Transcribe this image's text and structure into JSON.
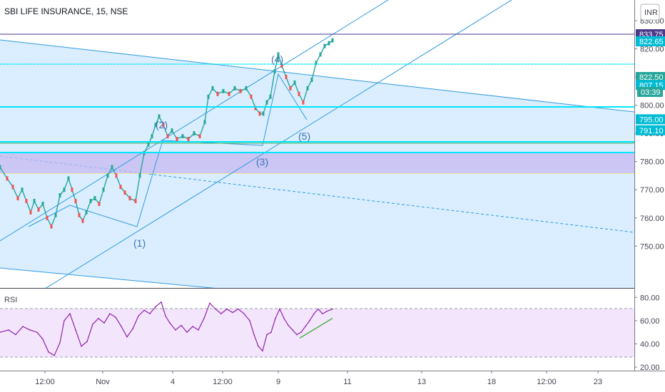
{
  "title": "SBI LIFE INSURANCE, 15, NSE",
  "currency": "INR",
  "rsi_label": "RSI",
  "countdown": "03:39",
  "colors": {
    "up": "#26a69a",
    "down": "#ef5350",
    "channel_fill": "#dbeeff",
    "channel_line": "#2f9ae0",
    "zone": "#c6b8f0",
    "cyan": "#00e5ff",
    "green_line": "#4caf50",
    "resist": "#4b3a8c",
    "rsi_line": "#8e24aa",
    "rsi_band": "#f3e5fc"
  },
  "chart_data": [
    {
      "type": "candlestick",
      "title": "SBI LIFE INSURANCE, 15, NSE",
      "xlabel": "",
      "ylabel": "",
      "x_ticks": [
        "12:00",
        "Nov",
        "4",
        "12:00",
        "9",
        "11",
        "13",
        "18",
        "12:00",
        "23"
      ],
      "y_ticks": [
        750,
        760,
        770,
        780,
        790,
        800,
        810,
        820,
        830
      ],
      "ylim": [
        744,
        841
      ],
      "price_labels": [
        {
          "value": 833.75,
          "text": "833.75",
          "color": "#4b3a8c"
        },
        {
          "value": 822.65,
          "text": "822.65",
          "color": "#00bcd4"
        },
        {
          "value": 822.5,
          "text": "822.50",
          "color": "#26a69a"
        },
        {
          "value": 807.15,
          "text": "807.15",
          "color": "#00bcd4"
        },
        {
          "value": 795.0,
          "text": "795.00",
          "color": "#00bcd4"
        },
        {
          "value": 791.1,
          "text": "791.10",
          "color": "#00bcd4"
        }
      ],
      "horizontal_levels": [
        833.75,
        822.65,
        807.15,
        795.0,
        791.1
      ],
      "zone": [
        784,
        791.1
      ],
      "wave_labels": [
        "(1)",
        "(2)",
        "(3)",
        "(4)",
        "(5)"
      ],
      "series_path": [
        {
          "x": 0,
          "y": 778
        },
        {
          "x": 10,
          "y": 774
        },
        {
          "x": 18,
          "y": 771
        },
        {
          "x": 25,
          "y": 767
        },
        {
          "x": 31,
          "y": 770
        },
        {
          "x": 37,
          "y": 766
        },
        {
          "x": 43,
          "y": 762
        },
        {
          "x": 48,
          "y": 766
        },
        {
          "x": 54,
          "y": 763
        },
        {
          "x": 60,
          "y": 765
        },
        {
          "x": 66,
          "y": 760
        },
        {
          "x": 72,
          "y": 757
        },
        {
          "x": 78,
          "y": 761
        },
        {
          "x": 84,
          "y": 768
        },
        {
          "x": 90,
          "y": 770
        },
        {
          "x": 96,
          "y": 774
        },
        {
          "x": 101,
          "y": 770
        },
        {
          "x": 106,
          "y": 766
        },
        {
          "x": 111,
          "y": 761
        },
        {
          "x": 116,
          "y": 759
        },
        {
          "x": 121,
          "y": 762
        },
        {
          "x": 127,
          "y": 766
        },
        {
          "x": 133,
          "y": 767
        },
        {
          "x": 139,
          "y": 765
        },
        {
          "x": 145,
          "y": 770
        },
        {
          "x": 151,
          "y": 775
        },
        {
          "x": 157,
          "y": 778
        },
        {
          "x": 163,
          "y": 775
        },
        {
          "x": 169,
          "y": 771
        },
        {
          "x": 175,
          "y": 769
        },
        {
          "x": 182,
          "y": 767
        },
        {
          "x": 190,
          "y": 766
        },
        {
          "x": 196,
          "y": 775
        },
        {
          "x": 202,
          "y": 783
        },
        {
          "x": 208,
          "y": 786
        },
        {
          "x": 213,
          "y": 789
        },
        {
          "x": 218,
          "y": 793
        },
        {
          "x": 223,
          "y": 796
        },
        {
          "x": 229,
          "y": 793
        },
        {
          "x": 235,
          "y": 789
        },
        {
          "x": 241,
          "y": 791
        },
        {
          "x": 248,
          "y": 788
        },
        {
          "x": 256,
          "y": 789
        },
        {
          "x": 264,
          "y": 788
        },
        {
          "x": 272,
          "y": 790
        },
        {
          "x": 280,
          "y": 789
        },
        {
          "x": 287,
          "y": 794
        },
        {
          "x": 292,
          "y": 803
        },
        {
          "x": 298,
          "y": 806
        },
        {
          "x": 305,
          "y": 804
        },
        {
          "x": 313,
          "y": 805
        },
        {
          "x": 321,
          "y": 804
        },
        {
          "x": 329,
          "y": 806
        },
        {
          "x": 337,
          "y": 805
        },
        {
          "x": 345,
          "y": 806
        },
        {
          "x": 352,
          "y": 803
        },
        {
          "x": 358,
          "y": 799
        },
        {
          "x": 364,
          "y": 797
        },
        {
          "x": 369,
          "y": 797
        },
        {
          "x": 374,
          "y": 801
        },
        {
          "x": 379,
          "y": 803
        },
        {
          "x": 385,
          "y": 812
        },
        {
          "x": 390,
          "y": 818
        },
        {
          "x": 395,
          "y": 814
        },
        {
          "x": 401,
          "y": 810
        },
        {
          "x": 407,
          "y": 806
        },
        {
          "x": 413,
          "y": 808
        },
        {
          "x": 419,
          "y": 804
        },
        {
          "x": 425,
          "y": 801
        },
        {
          "x": 431,
          "y": 806
        },
        {
          "x": 437,
          "y": 809
        },
        {
          "x": 443,
          "y": 815
        },
        {
          "x": 449,
          "y": 818
        },
        {
          "x": 455,
          "y": 821
        },
        {
          "x": 461,
          "y": 822
        },
        {
          "x": 466,
          "y": 823
        }
      ]
    },
    {
      "type": "line",
      "name": "RSI",
      "y_ticks": [
        20,
        40,
        60,
        80
      ],
      "ylim": [
        17,
        87
      ],
      "bands": [
        30,
        70
      ],
      "series_path": [
        {
          "x": 0,
          "y": 50
        },
        {
          "x": 12,
          "y": 52
        },
        {
          "x": 22,
          "y": 48
        },
        {
          "x": 32,
          "y": 55
        },
        {
          "x": 42,
          "y": 52
        },
        {
          "x": 52,
          "y": 50
        },
        {
          "x": 60,
          "y": 44
        },
        {
          "x": 68,
          "y": 33
        },
        {
          "x": 76,
          "y": 30
        },
        {
          "x": 84,
          "y": 41
        },
        {
          "x": 90,
          "y": 60
        },
        {
          "x": 98,
          "y": 66
        },
        {
          "x": 106,
          "y": 52
        },
        {
          "x": 114,
          "y": 38
        },
        {
          "x": 122,
          "y": 42
        },
        {
          "x": 130,
          "y": 57
        },
        {
          "x": 138,
          "y": 62
        },
        {
          "x": 146,
          "y": 58
        },
        {
          "x": 154,
          "y": 66
        },
        {
          "x": 162,
          "y": 63
        },
        {
          "x": 170,
          "y": 55
        },
        {
          "x": 178,
          "y": 46
        },
        {
          "x": 186,
          "y": 53
        },
        {
          "x": 194,
          "y": 64
        },
        {
          "x": 202,
          "y": 69
        },
        {
          "x": 210,
          "y": 66
        },
        {
          "x": 218,
          "y": 72
        },
        {
          "x": 226,
          "y": 76
        },
        {
          "x": 232,
          "y": 64
        },
        {
          "x": 238,
          "y": 58
        },
        {
          "x": 246,
          "y": 52
        },
        {
          "x": 254,
          "y": 56
        },
        {
          "x": 262,
          "y": 50
        },
        {
          "x": 270,
          "y": 55
        },
        {
          "x": 278,
          "y": 52
        },
        {
          "x": 286,
          "y": 62
        },
        {
          "x": 294,
          "y": 75
        },
        {
          "x": 302,
          "y": 70
        },
        {
          "x": 310,
          "y": 66
        },
        {
          "x": 318,
          "y": 70
        },
        {
          "x": 326,
          "y": 67
        },
        {
          "x": 334,
          "y": 70
        },
        {
          "x": 342,
          "y": 66
        },
        {
          "x": 350,
          "y": 60
        },
        {
          "x": 356,
          "y": 48
        },
        {
          "x": 362,
          "y": 38
        },
        {
          "x": 368,
          "y": 34
        },
        {
          "x": 374,
          "y": 48
        },
        {
          "x": 380,
          "y": 50
        },
        {
          "x": 386,
          "y": 62
        },
        {
          "x": 392,
          "y": 70
        },
        {
          "x": 398,
          "y": 62
        },
        {
          "x": 404,
          "y": 56
        },
        {
          "x": 410,
          "y": 52
        },
        {
          "x": 416,
          "y": 48
        },
        {
          "x": 422,
          "y": 50
        },
        {
          "x": 428,
          "y": 55
        },
        {
          "x": 434,
          "y": 60
        },
        {
          "x": 440,
          "y": 66
        },
        {
          "x": 446,
          "y": 70
        },
        {
          "x": 452,
          "y": 66
        },
        {
          "x": 458,
          "y": 68
        },
        {
          "x": 466,
          "y": 70
        }
      ],
      "divergence_line": [
        {
          "x": 420,
          "y": 45
        },
        {
          "x": 466,
          "y": 62
        }
      ]
    }
  ]
}
